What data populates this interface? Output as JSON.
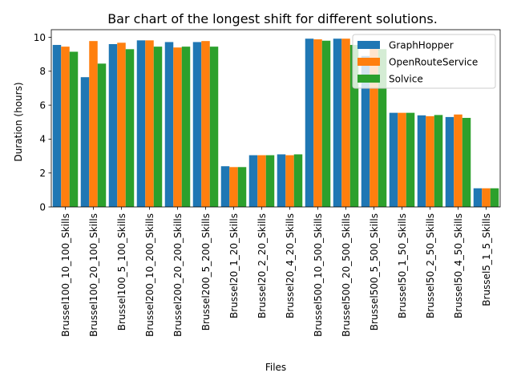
{
  "colors": {
    "GraphHopper": "#1f77b4",
    "OpenRouteService": "#ff7f0e",
    "Solvice": "#2ca02c"
  },
  "chart_data": {
    "type": "bar",
    "title": "Bar chart of the longest shift for different solutions.",
    "xlabel": "Files",
    "ylabel": "Duration (hours)",
    "ylim": [
      0,
      10.45
    ],
    "yticks": [
      0,
      2,
      4,
      6,
      8,
      10
    ],
    "legend_position": "top-right",
    "grid": false,
    "categories": [
      "Brussel100_10_100_Skills",
      "Brussel100_20_100_Skills",
      "Brussel100_5_100_Skills",
      "Brussel200_10_200_Skills",
      "Brussel200_20_200_Skills",
      "Brussel200_5_200_Skills",
      "Brussel20_1_20_Skills",
      "Brussel20_2_20_Skills",
      "Brussel20_4_20_Skills",
      "Brussel500_10_500_Skills",
      "Brussel500_20_500_Skills",
      "Brussel500_5_500_Skills",
      "Brussel50_1_50_Skills",
      "Brussel50_2_50_Skills",
      "Brussel50_4_50_Skills",
      "Brussel5_1_5_Skills"
    ],
    "series": [
      {
        "name": "GraphHopper",
        "values": [
          9.55,
          7.65,
          9.6,
          9.82,
          9.72,
          9.72,
          2.4,
          3.05,
          3.1,
          9.92,
          9.92,
          8.9,
          5.55,
          5.4,
          5.3,
          1.1
        ]
      },
      {
        "name": "OpenRouteService",
        "values": [
          9.45,
          9.78,
          9.68,
          9.82,
          9.4,
          9.78,
          2.35,
          3.05,
          3.05,
          9.88,
          9.92,
          9.5,
          5.55,
          5.35,
          5.45,
          1.1
        ]
      },
      {
        "name": "Solvice",
        "values": [
          9.15,
          8.45,
          9.3,
          9.45,
          9.45,
          9.45,
          2.35,
          3.05,
          3.1,
          9.8,
          9.55,
          9.3,
          5.55,
          5.42,
          5.25,
          1.1
        ]
      }
    ]
  }
}
